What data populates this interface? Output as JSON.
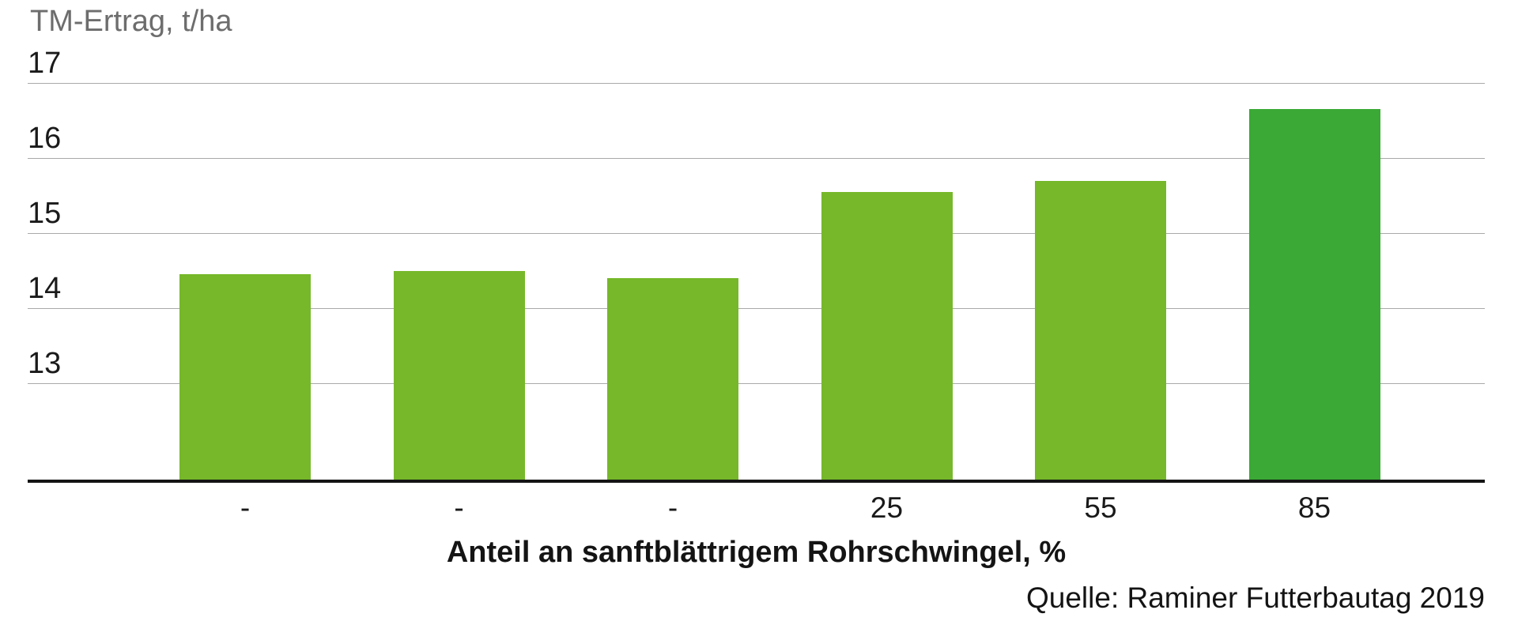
{
  "chart_data": {
    "type": "bar",
    "title": "TM-Ertrag, t/ha",
    "categories": [
      "-",
      "-",
      "-",
      "25",
      "55",
      "85"
    ],
    "values": [
      14.45,
      14.5,
      14.4,
      15.55,
      15.7,
      16.65
    ],
    "xlabel": "Anteil an sanftblättrigem Rohrschwingel, %",
    "ylabel": "TM-Ertrag, t/ha",
    "yticks": [
      13,
      14,
      15,
      16,
      17
    ],
    "ylim": [
      11.7,
      17
    ],
    "grid": true,
    "legend": "none",
    "bar_color": "#76b82a",
    "highlight_color": "#3aa935",
    "highlight_index": 5,
    "source": "Quelle: Raminer Futterbautag 2019"
  }
}
